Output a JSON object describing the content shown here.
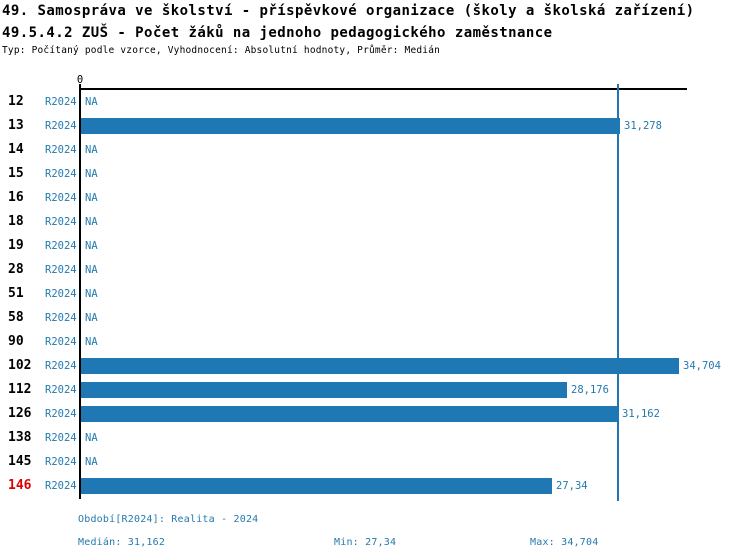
{
  "header": {
    "title_line1": "49. Samospráva ve školství - příspěvkové organizace (školy a školská zařízení)",
    "title_line2": "49.5.4.2 ZUŠ - Počet žáků na jednoho pedagogického zaměstnance",
    "subtitle": "Typ: Počítaný podle vzorce, Vyhodnocení: Absolutní hodnoty, Průměr: Medián"
  },
  "chart_data": {
    "type": "bar",
    "orientation": "horizontal",
    "title": "49.5.4.2 ZUŠ - Počet žáků na jednoho pedagogického zaměstnance",
    "axis": {
      "origin_label": "0",
      "xlim": [
        0,
        35.1
      ],
      "grid": false
    },
    "categories": [
      "12",
      "13",
      "14",
      "15",
      "16",
      "18",
      "19",
      "28",
      "51",
      "58",
      "90",
      "102",
      "112",
      "126",
      "138",
      "145",
      "146"
    ],
    "rows": [
      {
        "label": "12",
        "period": "R2024",
        "value": null,
        "value_label": "NA",
        "highlight": false
      },
      {
        "label": "13",
        "period": "R2024",
        "value": 31.278,
        "value_label": "31,278",
        "highlight": false
      },
      {
        "label": "14",
        "period": "R2024",
        "value": null,
        "value_label": "NA",
        "highlight": false
      },
      {
        "label": "15",
        "period": "R2024",
        "value": null,
        "value_label": "NA",
        "highlight": false
      },
      {
        "label": "16",
        "period": "R2024",
        "value": null,
        "value_label": "NA",
        "highlight": false
      },
      {
        "label": "18",
        "period": "R2024",
        "value": null,
        "value_label": "NA",
        "highlight": false
      },
      {
        "label": "19",
        "period": "R2024",
        "value": null,
        "value_label": "NA",
        "highlight": false
      },
      {
        "label": "28",
        "period": "R2024",
        "value": null,
        "value_label": "NA",
        "highlight": false
      },
      {
        "label": "51",
        "period": "R2024",
        "value": null,
        "value_label": "NA",
        "highlight": false
      },
      {
        "label": "58",
        "period": "R2024",
        "value": null,
        "value_label": "NA",
        "highlight": false
      },
      {
        "label": "90",
        "period": "R2024",
        "value": null,
        "value_label": "NA",
        "highlight": false
      },
      {
        "label": "102",
        "period": "R2024",
        "value": 34.704,
        "value_label": "34,704",
        "highlight": false
      },
      {
        "label": "112",
        "period": "R2024",
        "value": 28.176,
        "value_label": "28,176",
        "highlight": false
      },
      {
        "label": "126",
        "period": "R2024",
        "value": 31.162,
        "value_label": "31,162",
        "highlight": false
      },
      {
        "label": "138",
        "period": "R2024",
        "value": null,
        "value_label": "NA",
        "highlight": false
      },
      {
        "label": "145",
        "period": "R2024",
        "value": null,
        "value_label": "NA",
        "highlight": false
      },
      {
        "label": "146",
        "period": "R2024",
        "value": 27.34,
        "value_label": "27,34",
        "highlight": true
      }
    ],
    "median_value": 31.162,
    "min_value": 27.34,
    "max_value": 34.704,
    "colors": {
      "bar": "#1F77B4",
      "median_line": "#1F77B4",
      "blue_text": "#2479AE",
      "row_label": "#000000",
      "highlight_row_label": "#DD0000"
    }
  },
  "footer": {
    "period_line": "Období[R2024]: Realita - 2024",
    "median_label": "Medián: 31,162",
    "min_label": "Min: 27,34",
    "max_label": "Max: 34,704"
  }
}
